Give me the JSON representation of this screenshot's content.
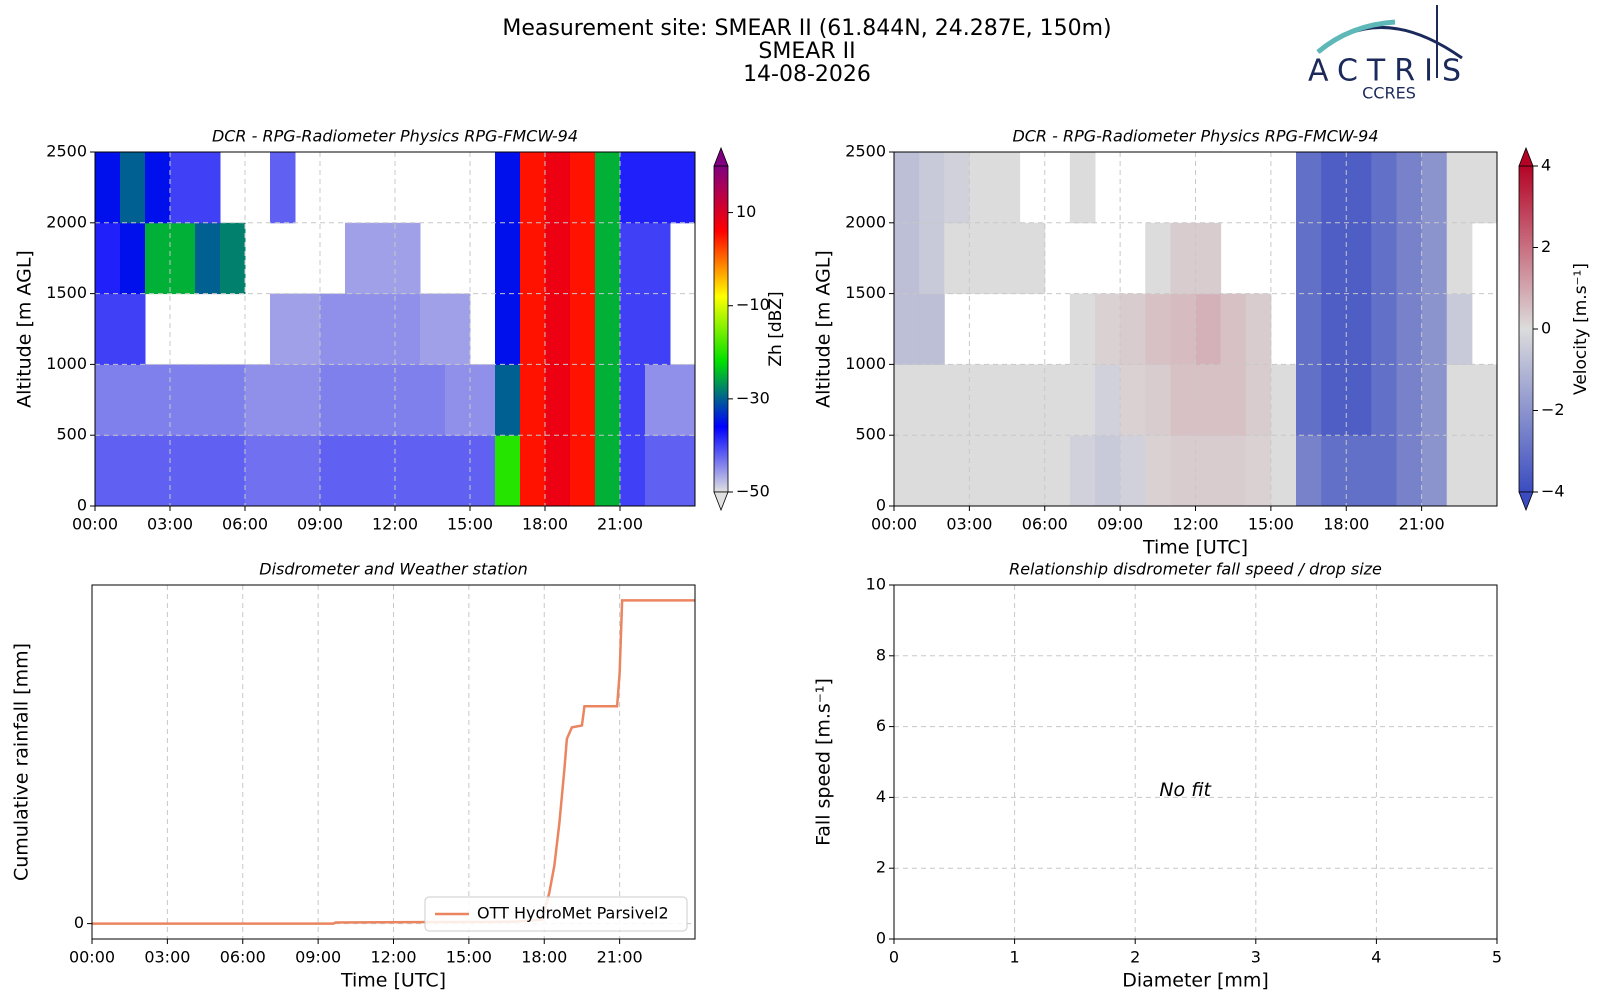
{
  "header": {
    "title": "Measurement site: SMEAR II (61.844N, 24.287E, 150m)",
    "site": "SMEAR II",
    "date": "14-08-2026",
    "logo": "ACTRIS",
    "logo_sub": "CCRES"
  },
  "chart_data": [
    {
      "type": "heatmap",
      "title": "DCR - RPG-Radiometer Physics RPG-FMCW-94",
      "ylabel": "Altitude [m AGL]",
      "x": [
        0.5,
        1.5,
        2.5,
        3.5,
        4.5,
        5.5,
        6.5,
        7.5,
        8.5,
        9.5,
        10.5,
        11.5,
        12.5,
        13.5,
        14.5,
        15.5,
        16.5,
        17.5,
        18.5,
        19.5,
        20.5,
        21.5,
        22.5,
        23.5
      ],
      "y": [
        250,
        750,
        1250,
        1750,
        2250
      ],
      "z": [
        [
          -42,
          -42,
          -42,
          -42,
          -42,
          -42,
          -43,
          -43,
          -43,
          -42,
          -42,
          -42,
          -42,
          -42,
          -42,
          -42,
          -20,
          5,
          8,
          5,
          -25,
          -40,
          -42,
          -42
        ],
        [
          -44,
          -44,
          -44,
          -44,
          -44,
          -44,
          -45,
          -45,
          -45,
          -44,
          -44,
          -44,
          -44,
          -44,
          -45,
          -45,
          -30,
          5,
          8,
          5,
          -25,
          -40,
          -45,
          -45
        ],
        [
          -40,
          -40,
          null,
          null,
          null,
          null,
          null,
          -46,
          -46,
          -45,
          -45,
          -45,
          -45,
          -46,
          -46,
          null,
          -35,
          5,
          8,
          5,
          -25,
          -40,
          -40,
          null
        ],
        [
          -38,
          -35,
          -25,
          -25,
          -30,
          -28,
          null,
          null,
          null,
          null,
          -46,
          -46,
          -46,
          null,
          null,
          null,
          -35,
          5,
          8,
          5,
          -25,
          -40,
          -40,
          null
        ],
        [
          -35,
          -30,
          -35,
          -40,
          -40,
          null,
          null,
          -42,
          null,
          null,
          null,
          null,
          null,
          null,
          null,
          null,
          -35,
          5,
          8,
          5,
          -25,
          -38,
          -38,
          -38
        ]
      ],
      "xlim": [
        0,
        24
      ],
      "ylim": [
        0,
        2500
      ],
      "xticks": [
        {
          "value": 0,
          "label": "00:00"
        },
        {
          "value": 3,
          "label": "03:00"
        },
        {
          "value": 6,
          "label": "06:00"
        },
        {
          "value": 9,
          "label": "09:00"
        },
        {
          "value": 12,
          "label": "12:00"
        },
        {
          "value": 15,
          "label": "15:00"
        },
        {
          "value": 18,
          "label": "18:00"
        },
        {
          "value": 21,
          "label": "21:00"
        }
      ],
      "yticks": [
        0,
        500,
        1000,
        1500,
        2000,
        2500
      ],
      "grid": true,
      "colorbar_label": "Zh [dBZ]",
      "clim": [
        -50,
        20
      ],
      "cticks": [
        {
          "value": 10,
          "label": "10"
        },
        {
          "value": -10,
          "label": "−10"
        },
        {
          "value": -30,
          "label": "−30"
        },
        {
          "value": -50,
          "label": "−50"
        }
      ],
      "colormap": [
        "#e0e0e0",
        "#0000ff",
        "#00e000",
        "#ffff00",
        "#ff0000",
        "#800080"
      ]
    },
    {
      "type": "heatmap",
      "title": "DCR - RPG-Radiometer Physics RPG-FMCW-94",
      "ylabel": "Altitude [m AGL]",
      "xlabel": "Time [UTC]",
      "x": [
        0.5,
        1.5,
        2.5,
        3.5,
        4.5,
        5.5,
        6.5,
        7.5,
        8.5,
        9.5,
        10.5,
        11.5,
        12.5,
        13.5,
        14.5,
        15.5,
        16.5,
        17.5,
        18.5,
        19.5,
        20.5,
        21.5,
        22.5,
        23.5
      ],
      "y": [
        250,
        750,
        1250,
        1750,
        2250
      ],
      "z": [
        [
          0,
          0,
          0,
          0,
          0,
          0,
          0,
          -0.3,
          -0.5,
          -0.3,
          0.2,
          0.3,
          0.3,
          0.3,
          0.2,
          0,
          -2.5,
          -3,
          -3,
          -3,
          -2.5,
          -2,
          0,
          0
        ],
        [
          0,
          0,
          0,
          0,
          0,
          0,
          0,
          0,
          -0.3,
          0.2,
          0.3,
          0.5,
          0.5,
          0.5,
          0.3,
          0,
          -3,
          -3.5,
          -3.5,
          -3,
          -2.5,
          -2,
          0,
          0
        ],
        [
          -0.8,
          -0.8,
          null,
          null,
          null,
          null,
          null,
          0,
          0.2,
          0.3,
          0.5,
          0.6,
          0.8,
          0.5,
          0.3,
          null,
          -3,
          -3.5,
          -3.5,
          -3,
          -2.5,
          -2,
          -0.5,
          null
        ],
        [
          -0.8,
          -0.5,
          0,
          0,
          0,
          0,
          null,
          null,
          null,
          null,
          0,
          0.3,
          0.3,
          null,
          null,
          null,
          -3,
          -3.5,
          -3.5,
          -3,
          -2.5,
          -2,
          0,
          null
        ],
        [
          -0.8,
          -0.5,
          -0.3,
          0,
          0,
          null,
          null,
          0,
          null,
          null,
          null,
          null,
          null,
          null,
          null,
          null,
          -3,
          -3.5,
          -3.5,
          -3,
          -2.5,
          -2,
          0,
          0
        ]
      ],
      "xlim": [
        0,
        24
      ],
      "ylim": [
        0,
        2500
      ],
      "xticks": [
        {
          "value": 0,
          "label": "00:00"
        },
        {
          "value": 3,
          "label": "03:00"
        },
        {
          "value": 6,
          "label": "06:00"
        },
        {
          "value": 9,
          "label": "09:00"
        },
        {
          "value": 12,
          "label": "12:00"
        },
        {
          "value": 15,
          "label": "15:00"
        },
        {
          "value": 18,
          "label": "18:00"
        },
        {
          "value": 21,
          "label": "21:00"
        }
      ],
      "yticks": [
        0,
        500,
        1000,
        1500,
        2000,
        2500
      ],
      "grid": true,
      "colorbar_label": "Velocity [m.s⁻¹]",
      "clim": [
        -4,
        4
      ],
      "cticks": [
        {
          "value": 4,
          "label": "4"
        },
        {
          "value": 2,
          "label": "2"
        },
        {
          "value": 0,
          "label": "0"
        },
        {
          "value": -2,
          "label": "−2"
        },
        {
          "value": -4,
          "label": "−4"
        }
      ],
      "colormap": [
        "#3b4cc0",
        "#dcdcdc",
        "#b40426"
      ]
    },
    {
      "type": "line",
      "title": "Disdrometer and Weather station",
      "ylabel": "Cumulative rainfall [mm]",
      "xlabel": "Time [UTC]",
      "x": [
        0,
        9.6,
        9.7,
        16.8,
        17.9,
        18.0,
        18.2,
        18.4,
        18.6,
        18.8,
        18.9,
        19.1,
        19.5,
        19.6,
        20.9,
        21.0,
        21.1,
        24
      ],
      "series": [
        {
          "name": "OTT HydroMet Parsivel2",
          "color": "#ea8560",
          "values": [
            0,
            0,
            0.03,
            0.05,
            0.1,
            0.3,
            0.8,
            1.5,
            2.6,
            4.0,
            4.8,
            5.1,
            5.15,
            5.65,
            5.65,
            6.5,
            8.4,
            8.4
          ]
        }
      ],
      "xlim": [
        0,
        24
      ],
      "ylim": [
        -0.4,
        8.8
      ],
      "xticks": [
        {
          "value": 0,
          "label": "00:00"
        },
        {
          "value": 3,
          "label": "03:00"
        },
        {
          "value": 6,
          "label": "06:00"
        },
        {
          "value": 9,
          "label": "09:00"
        },
        {
          "value": 12,
          "label": "12:00"
        },
        {
          "value": 15,
          "label": "15:00"
        },
        {
          "value": 18,
          "label": "18:00"
        },
        {
          "value": 21,
          "label": "21:00"
        }
      ],
      "yticks": [
        0
      ],
      "grid": true,
      "legend": "lower right"
    },
    {
      "type": "scatter",
      "title": "Relationship disdrometer fall speed / drop size",
      "ylabel": "Fall speed [m.s⁻¹]",
      "xlabel": "Diameter [mm]",
      "annotation": "No fit",
      "xlim": [
        0,
        5
      ],
      "ylim": [
        0,
        10
      ],
      "xticks": [
        0,
        1,
        2,
        3,
        4,
        5
      ],
      "yticks": [
        0,
        2,
        4,
        6,
        8,
        10
      ],
      "grid": true
    }
  ]
}
